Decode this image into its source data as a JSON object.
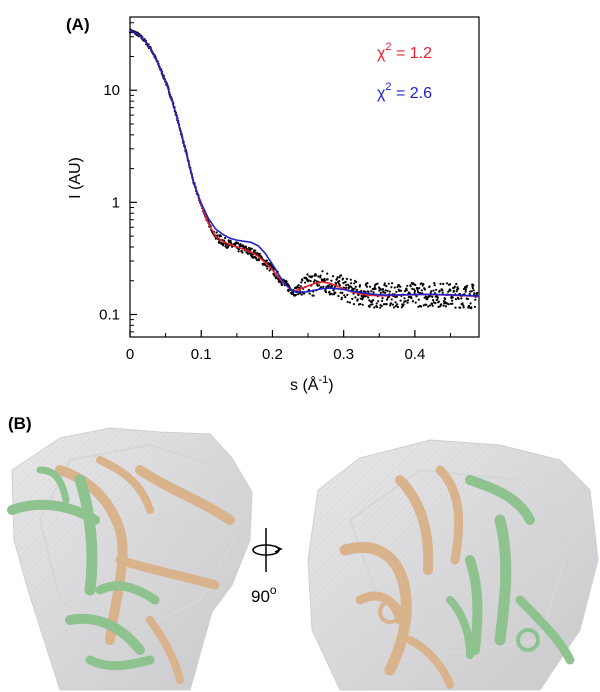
{
  "figure": {
    "panel_a_label": "(A)",
    "panel_b_label": "(B)",
    "rotation_text": "90",
    "rotation_superscript": "o"
  },
  "chart_data": {
    "type": "scatter",
    "xlabel": "s (Å",
    "xlabel_superscript": "-1",
    "xlabel_suffix": ")",
    "ylabel": "I (AU)",
    "xlim": [
      0,
      0.49
    ],
    "ylim": [
      0.063,
      45
    ],
    "yscale": "log",
    "grid": false,
    "x_ticks": [
      0,
      0.1,
      0.2,
      0.3,
      0.4
    ],
    "x_tick_labels": [
      "0",
      "0.1",
      "0.2",
      "0.3",
      "0.4"
    ],
    "y_ticks": [
      0.1,
      1,
      10
    ],
    "y_tick_labels": [
      "0.1",
      "1",
      "10"
    ],
    "annotations": [
      {
        "prefix": "χ",
        "sup": "2",
        "text": " = 1.2",
        "color": "#e8202a"
      },
      {
        "prefix": "χ",
        "sup": "2",
        "text": " = 2.6",
        "color": "#1f22cc"
      }
    ],
    "series": [
      {
        "kind": "points",
        "color": "#000000",
        "x": [
          0.0,
          0.01,
          0.02,
          0.03,
          0.04,
          0.05,
          0.06,
          0.07,
          0.08,
          0.09,
          0.1,
          0.11,
          0.12,
          0.13,
          0.14,
          0.15,
          0.16,
          0.17,
          0.18,
          0.19,
          0.2,
          0.21,
          0.22,
          0.23,
          0.24,
          0.25,
          0.26,
          0.27,
          0.28,
          0.29,
          0.3,
          0.31,
          0.32,
          0.33,
          0.34,
          0.35,
          0.36,
          0.37,
          0.38,
          0.39,
          0.4,
          0.41,
          0.42,
          0.43,
          0.44,
          0.45,
          0.46,
          0.47,
          0.48,
          0.49
        ],
        "y": [
          34,
          32,
          28,
          23,
          17,
          12,
          7.8,
          4.6,
          2.6,
          1.45,
          0.95,
          0.65,
          0.5,
          0.45,
          0.42,
          0.4,
          0.38,
          0.36,
          0.33,
          0.29,
          0.25,
          0.21,
          0.18,
          0.16,
          0.17,
          0.18,
          0.19,
          0.195,
          0.19,
          0.18,
          0.17,
          0.16,
          0.155,
          0.15,
          0.148,
          0.147,
          0.147,
          0.148,
          0.149,
          0.15,
          0.15,
          0.151,
          0.151,
          0.15,
          0.15,
          0.149,
          0.148,
          0.147,
          0.146,
          0.145
        ]
      },
      {
        "kind": "line",
        "color": "#e8202a",
        "x": [
          0.0,
          0.01,
          0.02,
          0.03,
          0.04,
          0.05,
          0.06,
          0.07,
          0.08,
          0.09,
          0.1,
          0.11,
          0.12,
          0.13,
          0.14,
          0.15,
          0.16,
          0.17,
          0.18,
          0.19,
          0.2,
          0.21,
          0.22,
          0.23,
          0.24,
          0.25,
          0.26,
          0.27,
          0.28,
          0.29,
          0.3,
          0.31,
          0.32,
          0.33,
          0.34,
          0.35,
          0.36,
          0.37,
          0.38,
          0.39,
          0.4,
          0.41,
          0.42,
          0.43,
          0.44,
          0.45,
          0.46,
          0.47,
          0.48,
          0.49
        ],
        "y": [
          34,
          32,
          28,
          23,
          17,
          12,
          7.8,
          4.6,
          2.6,
          1.45,
          0.95,
          0.65,
          0.5,
          0.45,
          0.42,
          0.4,
          0.38,
          0.36,
          0.33,
          0.29,
          0.25,
          0.21,
          0.18,
          0.16,
          0.17,
          0.18,
          0.19,
          0.195,
          0.19,
          0.18,
          0.17,
          0.16,
          0.155,
          0.15,
          0.148,
          0.147,
          0.147,
          0.148,
          0.149,
          0.15,
          0.15,
          0.151,
          0.151,
          0.15,
          0.15,
          0.149,
          0.148,
          0.147,
          0.146,
          0.145
        ]
      },
      {
        "kind": "line",
        "color": "#1f22cc",
        "x": [
          0.0,
          0.01,
          0.02,
          0.03,
          0.04,
          0.05,
          0.06,
          0.07,
          0.08,
          0.09,
          0.1,
          0.11,
          0.12,
          0.13,
          0.14,
          0.15,
          0.16,
          0.17,
          0.18,
          0.19,
          0.2,
          0.21,
          0.22,
          0.23,
          0.24,
          0.25,
          0.26,
          0.27,
          0.28,
          0.29,
          0.3,
          0.31,
          0.32,
          0.33,
          0.34,
          0.35,
          0.36,
          0.37,
          0.38,
          0.39,
          0.4,
          0.41,
          0.42,
          0.43,
          0.44,
          0.45,
          0.46,
          0.47,
          0.48,
          0.49
        ],
        "y": [
          34,
          32,
          28,
          23,
          17,
          12,
          7.8,
          4.6,
          2.6,
          1.45,
          0.98,
          0.72,
          0.58,
          0.52,
          0.48,
          0.46,
          0.45,
          0.44,
          0.41,
          0.35,
          0.28,
          0.22,
          0.18,
          0.16,
          0.158,
          0.16,
          0.165,
          0.17,
          0.172,
          0.17,
          0.167,
          0.162,
          0.158,
          0.155,
          0.152,
          0.15,
          0.149,
          0.149,
          0.15,
          0.15,
          0.151,
          0.151,
          0.151,
          0.151,
          0.15,
          0.15,
          0.149,
          0.148,
          0.147,
          0.146
        ]
      }
    ]
  }
}
